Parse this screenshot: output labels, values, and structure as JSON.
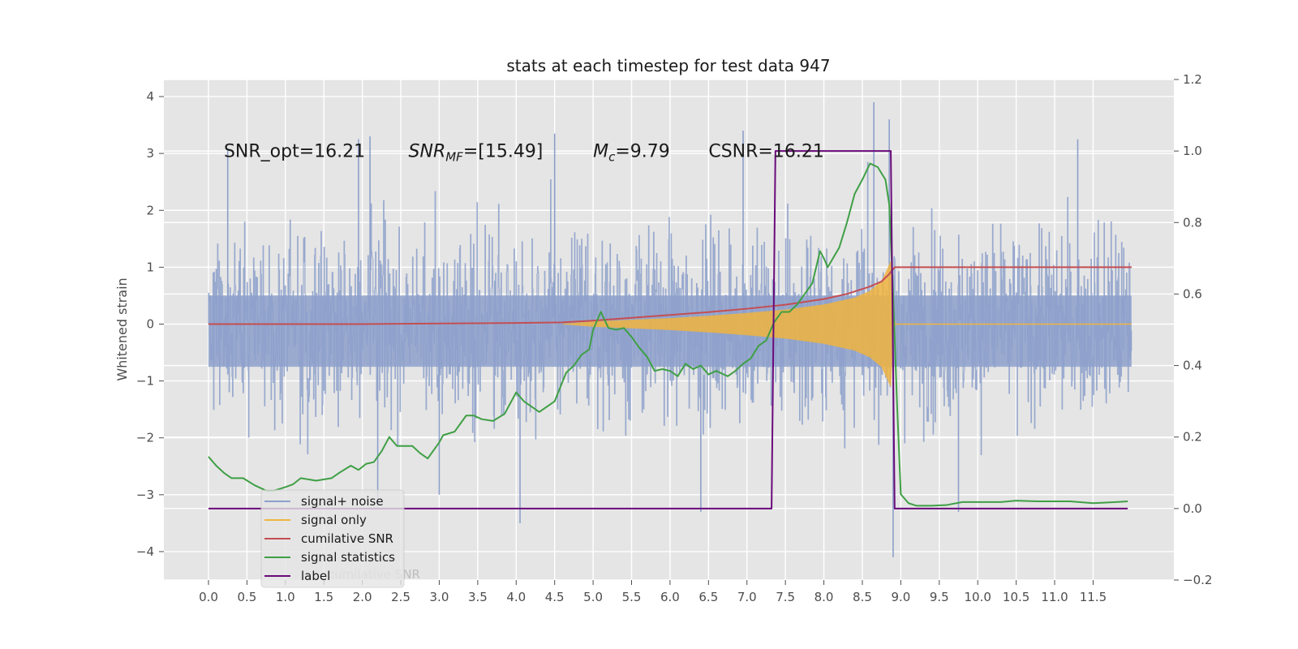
{
  "chart_data": {
    "type": "line",
    "title": "stats at each timestep for test data 947",
    "ylabel": "Whitened strain",
    "ylabel_right": "",
    "xlim": [
      -0.58,
      12.55
    ],
    "ylim": [
      -4.5,
      4.3
    ],
    "ylim_right": [
      -0.2,
      1.2
    ],
    "x_ticks": [
      "0.0",
      "0.5",
      "1.0",
      "1.5",
      "2.0",
      "2.5",
      "3.0",
      "3.5",
      "4.0",
      "4.5",
      "5.0",
      "5.5",
      "6.0",
      "6.5",
      "7.0",
      "7.5",
      "8.0",
      "8.5",
      "9.0",
      "9.5",
      "10.0",
      "10.5",
      "11.0",
      "11.5"
    ],
    "y_ticks": [
      "4",
      "3",
      "2",
      "1",
      "0",
      "−1",
      "−2",
      "−3",
      "−4"
    ],
    "y_ticks_right": [
      "1.2",
      "1.0",
      "0.8",
      "0.6",
      "0.4",
      "0.2",
      "0.0",
      "−0.2"
    ],
    "annotations": [
      {
        "text": "SNR_opt=16.21",
        "x": 0.2,
        "y": 3.05
      },
      {
        "text": "SNR",
        "sub": "MF",
        "rest": "=[15.49]",
        "x": 2.6,
        "y": 3.05
      },
      {
        "text": "M",
        "sub": "c",
        "rest": "=9.79",
        "x": 5.0,
        "y": 3.05
      },
      {
        "text": "CSNR=16.21",
        "x": 6.5,
        "y": 3.05
      }
    ],
    "legend": {
      "placement": "lower-left",
      "entries": [
        {
          "name": "signal+ noise",
          "color": "#8da0cb"
        },
        {
          "name": "signal only",
          "color": "#f0b440"
        },
        {
          "name": "cumilative SNR",
          "color": "#c44e52"
        },
        {
          "name": "signal statistics",
          "color": "#3f9f45"
        },
        {
          "name": "label",
          "color": "#6a0a7a"
        }
      ],
      "ghost_text": "cumilative SNR"
    },
    "series": [
      {
        "name": "signal+ noise",
        "axis": "left",
        "color": "#8da0cb",
        "x_range": [
          0.0,
          12.0
        ],
        "typical_amplitude": 1.35,
        "peak_values": [
          {
            "x": 0.25,
            "y": 3.05
          },
          {
            "x": 1.95,
            "y": 3.25
          },
          {
            "x": 2.1,
            "y": 3.3
          },
          {
            "x": 4.5,
            "y": 3.35
          },
          {
            "x": 6.95,
            "y": 3.4
          },
          {
            "x": 8.65,
            "y": 3.9
          },
          {
            "x": 8.85,
            "y": 3.6
          },
          {
            "x": 11.3,
            "y": 3.25
          },
          {
            "x": 4.05,
            "y": -3.5
          },
          {
            "x": 6.4,
            "y": -3.3
          },
          {
            "x": 8.9,
            "y": -4.1
          },
          {
            "x": 9.75,
            "y": -3.3
          },
          {
            "x": 2.2,
            "y": -3.2
          },
          {
            "x": 3.0,
            "y": -3.0
          }
        ]
      },
      {
        "name": "signal only",
        "axis": "left",
        "color": "#f0b440",
        "envelope": [
          {
            "x": 4.6,
            "y": 0.0
          },
          {
            "x": 5.0,
            "y": 0.04
          },
          {
            "x": 5.5,
            "y": 0.07
          },
          {
            "x": 6.0,
            "y": 0.1
          },
          {
            "x": 6.5,
            "y": 0.14
          },
          {
            "x": 7.0,
            "y": 0.19
          },
          {
            "x": 7.5,
            "y": 0.25
          },
          {
            "x": 8.0,
            "y": 0.34
          },
          {
            "x": 8.4,
            "y": 0.46
          },
          {
            "x": 8.6,
            "y": 0.58
          },
          {
            "x": 8.75,
            "y": 0.75
          },
          {
            "x": 8.82,
            "y": 0.95
          },
          {
            "x": 8.87,
            "y": 1.1
          },
          {
            "x": 8.9,
            "y": 0.2
          },
          {
            "x": 8.93,
            "y": 0.0
          }
        ],
        "flat_after": {
          "x_from": 8.93,
          "x_to": 12.0,
          "y": 0.0
        }
      },
      {
        "name": "cumilative SNR",
        "axis": "left",
        "color": "#c44e52",
        "points": [
          {
            "x": 0.0,
            "y": 0.0
          },
          {
            "x": 2.0,
            "y": 0.0
          },
          {
            "x": 4.0,
            "y": 0.02
          },
          {
            "x": 4.6,
            "y": 0.03
          },
          {
            "x": 5.0,
            "y": 0.06
          },
          {
            "x": 5.5,
            "y": 0.11
          },
          {
            "x": 6.0,
            "y": 0.16
          },
          {
            "x": 6.5,
            "y": 0.21
          },
          {
            "x": 7.0,
            "y": 0.27
          },
          {
            "x": 7.5,
            "y": 0.34
          },
          {
            "x": 8.0,
            "y": 0.44
          },
          {
            "x": 8.3,
            "y": 0.53
          },
          {
            "x": 8.6,
            "y": 0.66
          },
          {
            "x": 8.75,
            "y": 0.75
          },
          {
            "x": 8.85,
            "y": 0.88
          },
          {
            "x": 8.92,
            "y": 1.0
          },
          {
            "x": 12.0,
            "y": 1.0
          }
        ]
      },
      {
        "name": "signal statistics",
        "axis": "right",
        "color": "#3f9f45",
        "points": [
          {
            "x": 0.0,
            "y": 0.145
          },
          {
            "x": 0.1,
            "y": 0.12
          },
          {
            "x": 0.2,
            "y": 0.1
          },
          {
            "x": 0.3,
            "y": 0.085
          },
          {
            "x": 0.45,
            "y": 0.085
          },
          {
            "x": 0.6,
            "y": 0.065
          },
          {
            "x": 0.75,
            "y": 0.05
          },
          {
            "x": 0.85,
            "y": 0.05
          },
          {
            "x": 1.0,
            "y": 0.06
          },
          {
            "x": 1.1,
            "y": 0.068
          },
          {
            "x": 1.2,
            "y": 0.085
          },
          {
            "x": 1.4,
            "y": 0.078
          },
          {
            "x": 1.6,
            "y": 0.085
          },
          {
            "x": 1.7,
            "y": 0.1
          },
          {
            "x": 1.85,
            "y": 0.12
          },
          {
            "x": 1.95,
            "y": 0.108
          },
          {
            "x": 2.05,
            "y": 0.125
          },
          {
            "x": 2.15,
            "y": 0.13
          },
          {
            "x": 2.25,
            "y": 0.16
          },
          {
            "x": 2.35,
            "y": 0.2
          },
          {
            "x": 2.45,
            "y": 0.175
          },
          {
            "x": 2.55,
            "y": 0.175
          },
          {
            "x": 2.65,
            "y": 0.175
          },
          {
            "x": 2.75,
            "y": 0.155
          },
          {
            "x": 2.85,
            "y": 0.14
          },
          {
            "x": 3.0,
            "y": 0.185
          },
          {
            "x": 3.05,
            "y": 0.205
          },
          {
            "x": 3.2,
            "y": 0.215
          },
          {
            "x": 3.35,
            "y": 0.26
          },
          {
            "x": 3.45,
            "y": 0.26
          },
          {
            "x": 3.55,
            "y": 0.25
          },
          {
            "x": 3.7,
            "y": 0.245
          },
          {
            "x": 3.85,
            "y": 0.265
          },
          {
            "x": 4.0,
            "y": 0.325
          },
          {
            "x": 4.1,
            "y": 0.3
          },
          {
            "x": 4.3,
            "y": 0.27
          },
          {
            "x": 4.5,
            "y": 0.3
          },
          {
            "x": 4.65,
            "y": 0.38
          },
          {
            "x": 4.75,
            "y": 0.4
          },
          {
            "x": 4.85,
            "y": 0.43
          },
          {
            "x": 4.95,
            "y": 0.445
          },
          {
            "x": 5.0,
            "y": 0.5
          },
          {
            "x": 5.1,
            "y": 0.55
          },
          {
            "x": 5.2,
            "y": 0.505
          },
          {
            "x": 5.3,
            "y": 0.5
          },
          {
            "x": 5.4,
            "y": 0.505
          },
          {
            "x": 5.5,
            "y": 0.48
          },
          {
            "x": 5.6,
            "y": 0.45
          },
          {
            "x": 5.7,
            "y": 0.425
          },
          {
            "x": 5.8,
            "y": 0.385
          },
          {
            "x": 5.9,
            "y": 0.39
          },
          {
            "x": 6.0,
            "y": 0.385
          },
          {
            "x": 6.1,
            "y": 0.37
          },
          {
            "x": 6.2,
            "y": 0.405
          },
          {
            "x": 6.3,
            "y": 0.39
          },
          {
            "x": 6.4,
            "y": 0.4
          },
          {
            "x": 6.5,
            "y": 0.375
          },
          {
            "x": 6.6,
            "y": 0.385
          },
          {
            "x": 6.75,
            "y": 0.37
          },
          {
            "x": 6.85,
            "y": 0.385
          },
          {
            "x": 6.95,
            "y": 0.405
          },
          {
            "x": 7.05,
            "y": 0.42
          },
          {
            "x": 7.15,
            "y": 0.455
          },
          {
            "x": 7.25,
            "y": 0.47
          },
          {
            "x": 7.35,
            "y": 0.52
          },
          {
            "x": 7.45,
            "y": 0.55
          },
          {
            "x": 7.55,
            "y": 0.55
          },
          {
            "x": 7.65,
            "y": 0.57
          },
          {
            "x": 7.75,
            "y": 0.6
          },
          {
            "x": 7.85,
            "y": 0.63
          },
          {
            "x": 7.95,
            "y": 0.72
          },
          {
            "x": 8.0,
            "y": 0.7
          },
          {
            "x": 8.05,
            "y": 0.675
          },
          {
            "x": 8.2,
            "y": 0.73
          },
          {
            "x": 8.3,
            "y": 0.8
          },
          {
            "x": 8.4,
            "y": 0.88
          },
          {
            "x": 8.5,
            "y": 0.92
          },
          {
            "x": 8.6,
            "y": 0.965
          },
          {
            "x": 8.7,
            "y": 0.955
          },
          {
            "x": 8.8,
            "y": 0.92
          },
          {
            "x": 8.85,
            "y": 0.85
          },
          {
            "x": 8.9,
            "y": 0.6
          },
          {
            "x": 8.95,
            "y": 0.3
          },
          {
            "x": 9.0,
            "y": 0.04
          },
          {
            "x": 9.1,
            "y": 0.015
          },
          {
            "x": 9.2,
            "y": 0.008
          },
          {
            "x": 9.4,
            "y": 0.008
          },
          {
            "x": 9.6,
            "y": 0.01
          },
          {
            "x": 9.8,
            "y": 0.018
          },
          {
            "x": 10.0,
            "y": 0.018
          },
          {
            "x": 10.3,
            "y": 0.018
          },
          {
            "x": 10.5,
            "y": 0.022
          },
          {
            "x": 10.8,
            "y": 0.02
          },
          {
            "x": 11.2,
            "y": 0.02
          },
          {
            "x": 11.5,
            "y": 0.015
          },
          {
            "x": 11.8,
            "y": 0.018
          },
          {
            "x": 11.95,
            "y": 0.02
          }
        ]
      },
      {
        "name": "label",
        "axis": "right",
        "color": "#6a0a7a",
        "points": [
          {
            "x": 0.0,
            "y": 0.0
          },
          {
            "x": 7.32,
            "y": 0.0
          },
          {
            "x": 7.37,
            "y": 1.0
          },
          {
            "x": 8.87,
            "y": 1.0
          },
          {
            "x": 8.92,
            "y": 0.0
          },
          {
            "x": 11.95,
            "y": 0.0
          }
        ]
      }
    ]
  }
}
